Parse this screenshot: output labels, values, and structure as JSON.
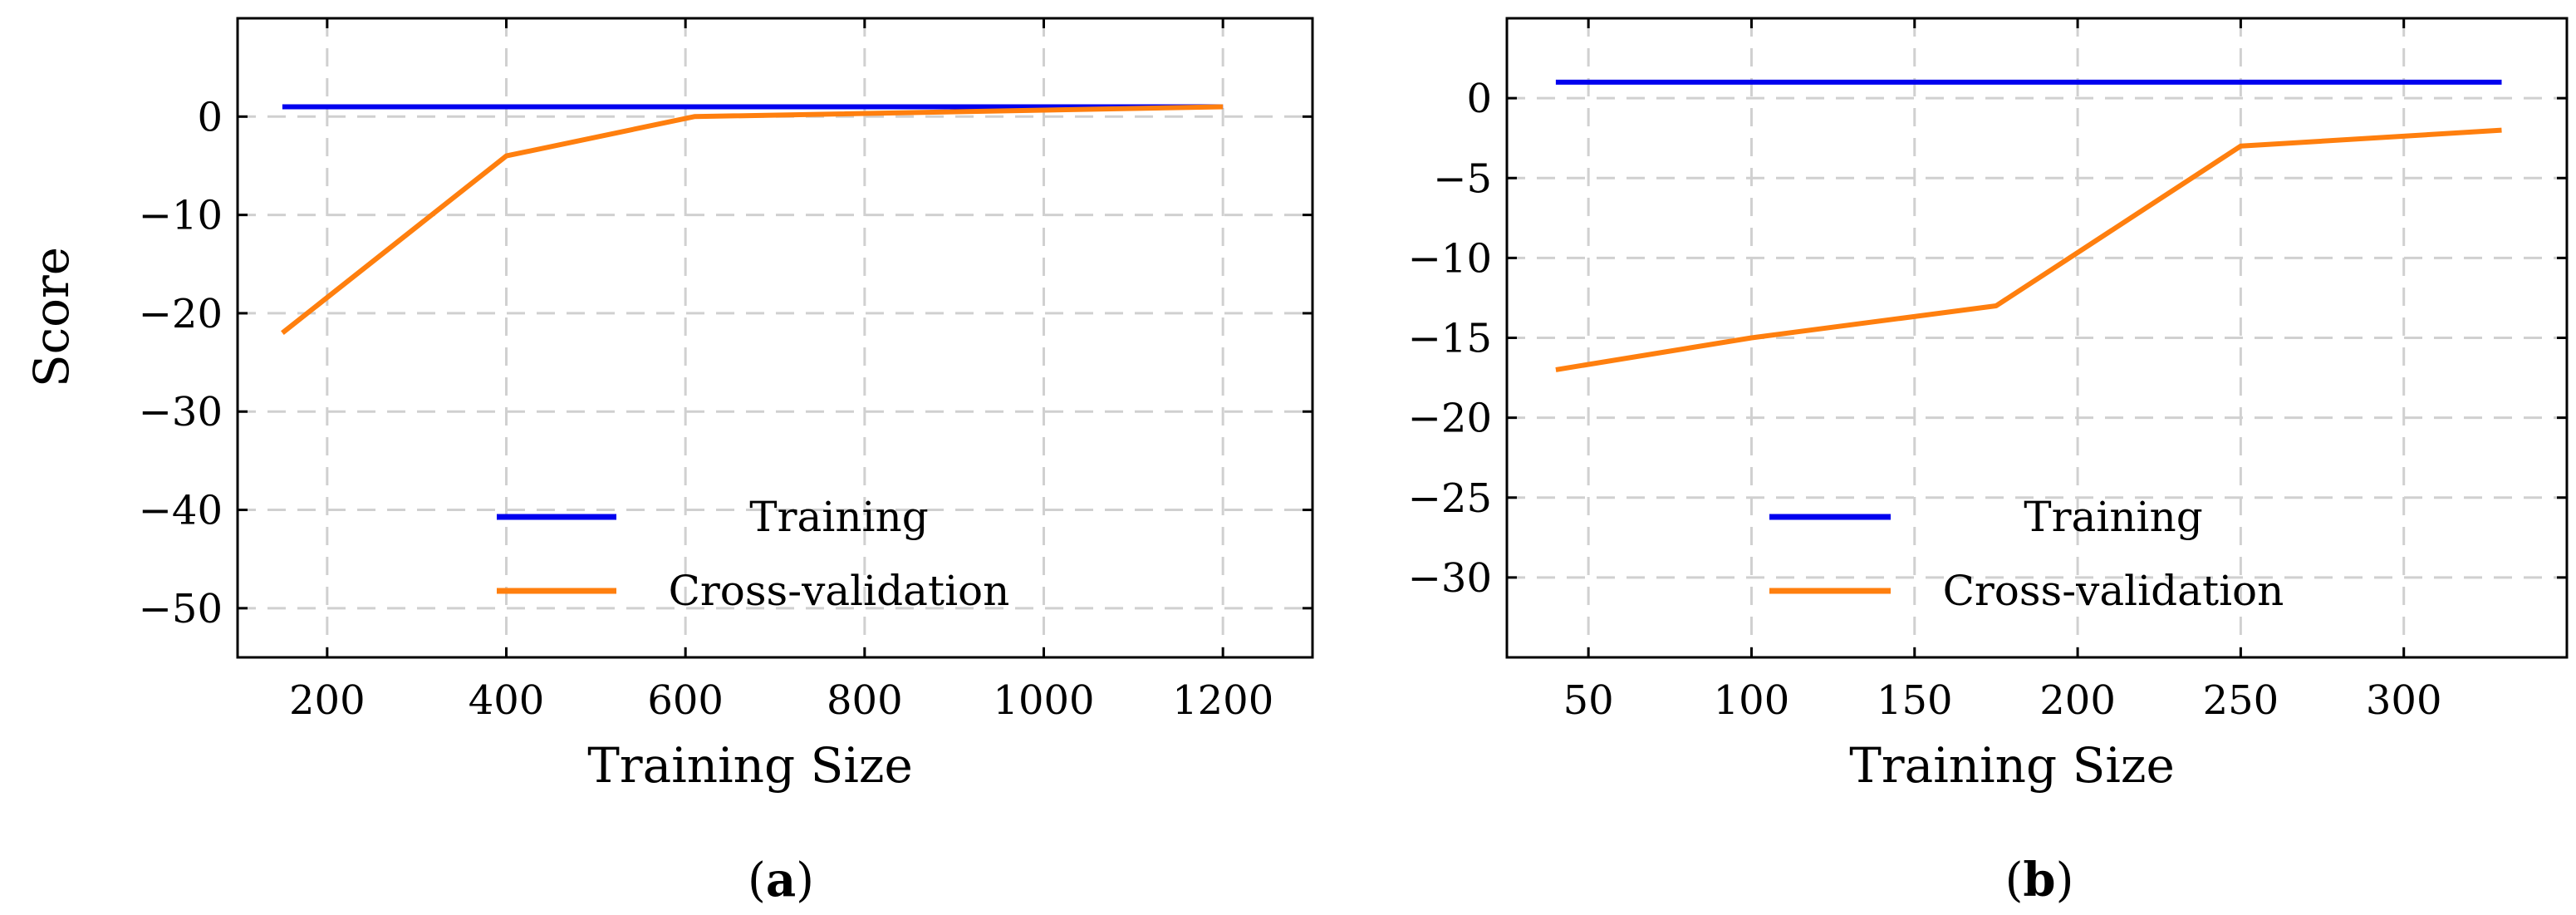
{
  "chart_data": [
    {
      "type": "line",
      "panel_label": "a",
      "title": "",
      "xlabel": "Training Size",
      "ylabel": "Score",
      "xlim": [
        100,
        1300
      ],
      "ylim": [
        -55,
        10
      ],
      "xticks": [
        200,
        400,
        600,
        800,
        1000,
        1200
      ],
      "yticks": [
        0,
        -10,
        -20,
        -30,
        -40,
        -50
      ],
      "xtick_labels": [
        "200",
        "400",
        "600",
        "800",
        "1000",
        "1200"
      ],
      "ytick_labels": [
        "0",
        "−10",
        "−20",
        "−30",
        "−40",
        "−50"
      ],
      "grid": true,
      "legend_position": "bottom-center",
      "series": [
        {
          "name": "Training",
          "color": "#0000ee",
          "x": [
            150,
            400,
            600,
            1200
          ],
          "y": [
            1,
            1,
            1,
            1
          ]
        },
        {
          "name": "Cross-validation",
          "color": "#ff7f0e",
          "x": [
            150,
            400,
            610,
            1200
          ],
          "y": [
            -22,
            -4,
            0,
            1
          ]
        }
      ]
    },
    {
      "type": "line",
      "panel_label": "b",
      "title": "",
      "xlabel": "Training Size",
      "ylabel": "",
      "xlim": [
        25,
        350
      ],
      "ylim": [
        -35,
        5
      ],
      "xticks": [
        50,
        100,
        150,
        200,
        250,
        300
      ],
      "yticks": [
        0,
        -5,
        -10,
        -15,
        -20,
        -25,
        -30
      ],
      "xtick_labels": [
        "50",
        "100",
        "150",
        "200",
        "250",
        "300"
      ],
      "ytick_labels": [
        "0",
        "−5",
        "−10",
        "−15",
        "−20",
        "−25",
        "−30"
      ],
      "grid": true,
      "legend_position": "bottom-center",
      "series": [
        {
          "name": "Training",
          "color": "#0000ee",
          "x": [
            40,
            100,
            175,
            250,
            330
          ],
          "y": [
            1,
            1,
            1,
            1,
            1
          ]
        },
        {
          "name": "Cross-validation",
          "color": "#ff7f0e",
          "x": [
            40,
            100,
            175,
            250,
            330
          ],
          "y": [
            -17,
            -15,
            -13,
            -3,
            -2
          ]
        }
      ]
    }
  ]
}
